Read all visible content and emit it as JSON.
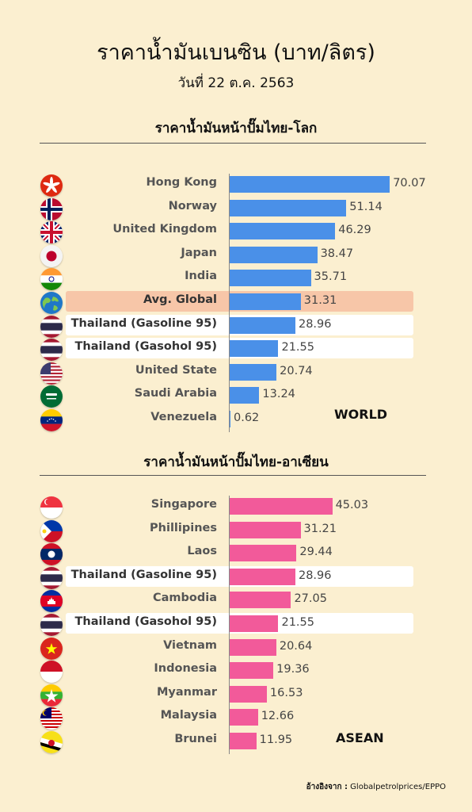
{
  "title": "ราคาน้ำมันเบนซิน (บาท/ลิตร)",
  "date": "วันที่ 22 ต.ค. 2563",
  "source_label": "อ้างอิงจาก :",
  "source_value": "Globalpetrolprices/EPPO",
  "chart_data": [
    {
      "type": "bar",
      "title": "ราคาน้ำมันหน้าปั๊มไทย-โลก",
      "tag": "WORLD",
      "bar_color": "#4a90e8",
      "categories": [
        "Hong Kong",
        "Norway",
        "United Kingdom",
        "Japan",
        "India",
        "Avg. Global",
        "Thailand (Gasoline 95)",
        "Thailand (Gasohol 95)",
        "United State",
        "Saudi Arabia",
        "Venezuela"
      ],
      "values": [
        70.07,
        51.14,
        46.29,
        38.47,
        35.71,
        31.31,
        28.96,
        21.55,
        20.74,
        13.24,
        0.62
      ],
      "value_labels": [
        "70.07",
        "51.14",
        "46.29",
        "38.47",
        "35.71",
        "31.31",
        "28.96",
        "21.55",
        "20.74",
        "13.24",
        "0.62"
      ],
      "flags": [
        "hongkong-flag-icon",
        "norway-flag-icon",
        "uk-flag-icon",
        "japan-flag-icon",
        "india-flag-icon",
        "globe-icon",
        "thailand-flag-icon",
        "thailand-flag-icon",
        "usa-flag-icon",
        "saudi-flag-icon",
        "venezuela-flag-icon"
      ],
      "highlights": [
        "",
        "",
        "",
        "",
        "",
        "orange",
        "white",
        "white",
        "",
        "",
        ""
      ],
      "orientation": "horizontal"
    },
    {
      "type": "bar",
      "title": "ราคาน้ำมันหน้าปั๊มไทย-อาเซียน",
      "tag": "ASEAN",
      "bar_color": "#f25a9a",
      "categories": [
        "Singapore",
        "Phillipines",
        "Laos",
        "Thailand (Gasoline 95)",
        "Cambodia",
        "Thailand (Gasohol 95)",
        "Vietnam",
        "Indonesia",
        "Myanmar",
        "Malaysia",
        "Brunei"
      ],
      "values": [
        45.03,
        31.21,
        29.44,
        28.96,
        27.05,
        21.55,
        20.64,
        19.36,
        16.53,
        12.66,
        11.95
      ],
      "value_labels": [
        "45.03",
        "31.21",
        "29.44",
        "28.96",
        "27.05",
        "21.55",
        "20.64",
        "19.36",
        "16.53",
        "12.66",
        "11.95"
      ],
      "flags": [
        "singapore-flag-icon",
        "philippines-flag-icon",
        "laos-flag-icon",
        "thailand-flag-icon",
        "cambodia-flag-icon",
        "thailand-flag-icon",
        "vietnam-flag-icon",
        "indonesia-flag-icon",
        "myanmar-flag-icon",
        "malaysia-flag-icon",
        "brunei-flag-icon"
      ],
      "highlights": [
        "",
        "",
        "",
        "white",
        "",
        "white",
        "",
        "",
        "",
        "",
        ""
      ],
      "orientation": "horizontal"
    }
  ]
}
